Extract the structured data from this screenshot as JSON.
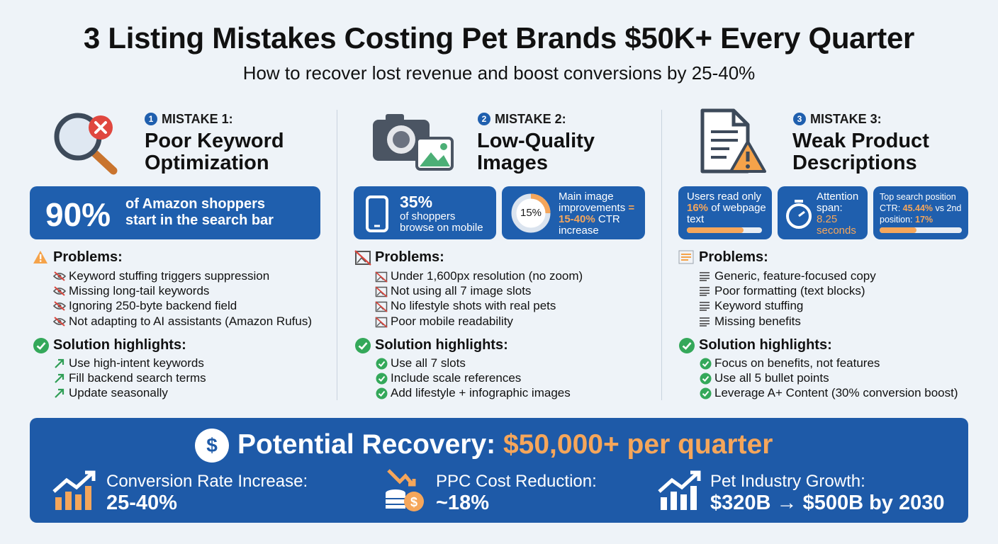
{
  "header": {
    "title": "3 Listing Mistakes Costing Pet Brands $50K+ Every Quarter",
    "subtitle": "How to recover lost revenue and boost conversions by 25-40%"
  },
  "columns": [
    {
      "number": "1",
      "label": "MISTAKE 1:",
      "heading": "Poor Keyword Optimization",
      "stats": [
        {
          "value": "90%",
          "text": "of Amazon shoppers start in the search bar"
        }
      ],
      "problems_title": "Problems:",
      "problems": [
        "Keyword stuffing triggers suppression",
        "Missing long-tail keywords",
        "Ignoring 250-byte backend field",
        "Not adapting to AI assistants (Amazon Rufus)"
      ],
      "solutions_title": "Solution highlights:",
      "solutions": [
        "Use high-intent keywords",
        "Fill backend search terms",
        "Update seasonally"
      ]
    },
    {
      "number": "2",
      "label": "MISTAKE 2:",
      "heading": "Low-Quality Images",
      "stats": [
        {
          "value": "35%",
          "text": "of shoppers browse on mobile"
        },
        {
          "value": "15%",
          "text": "Main image improvements",
          "highlight": "= 15-40%",
          "text2": "CTR increase"
        }
      ],
      "problems_title": "Problems:",
      "problems": [
        "Under 1,600px resolution (no zoom)",
        "Not using all 7 image slots",
        "No lifestyle shots with real pets",
        "Poor mobile readability"
      ],
      "solutions_title": "Solution highlights:",
      "solutions": [
        "Use all 7 slots",
        "Include scale references",
        "Add lifestyle + infographic images"
      ]
    },
    {
      "number": "3",
      "label": "MISTAKE 3:",
      "heading": "Weak Product Descriptions",
      "stats": [
        {
          "text": "Users read only",
          "highlight": "16%",
          "text2": "of webpage text"
        },
        {
          "text": "Attention span:",
          "highlight": "8.25 seconds"
        },
        {
          "text": "Top search position CTR:",
          "highlight": "45.44%",
          "text2": "vs 2nd position:",
          "highlight2": "17%"
        }
      ],
      "problems_title": "Problems:",
      "problems": [
        "Generic, feature-focused copy",
        "Poor formatting (text blocks)",
        "Keyword stuffing",
        "Missing benefits"
      ],
      "solutions_title": "Solution highlights:",
      "solutions": [
        "Focus on benefits, not features",
        "Use all 5 bullet points",
        "Leverage A+ Content (30% conversion boost)"
      ]
    }
  ],
  "recovery": {
    "title": "Potential Recovery:",
    "highlight": "$50,000+ per quarter",
    "items": [
      {
        "label": "Conversion Rate Increase:",
        "value": "25-40%"
      },
      {
        "label": "PPC Cost Reduction:",
        "value": "~18%"
      },
      {
        "label": "Pet Industry Growth:",
        "value": "$320B → $500B by 2030"
      }
    ]
  }
}
